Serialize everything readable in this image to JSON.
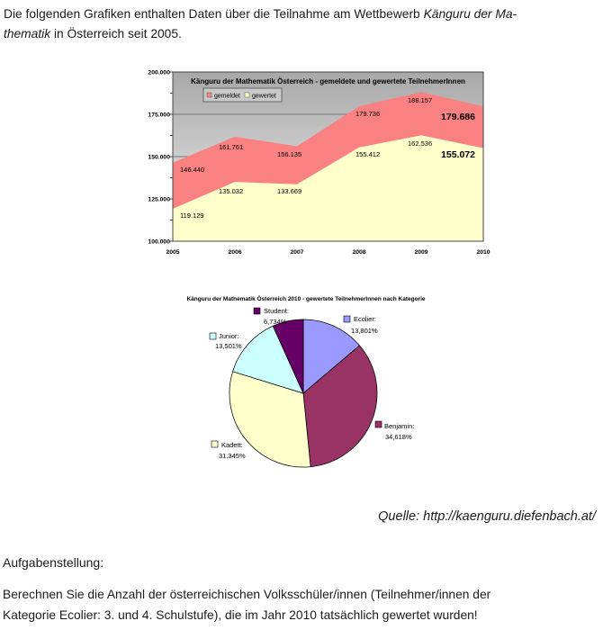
{
  "page": {
    "intro": {
      "line1_normal": "Die folgenden Grafiken enthalten Daten über die Teilnahme am Wettbewerb ",
      "line1_italic": "Känguru der Ma-",
      "line2_italic": "thematik",
      "line2_normal": " in Österreich seit 2005."
    },
    "source_line": "Quelle: http://kaenguru.diefenbach.at/",
    "task_heading": "Aufgabenstellung:",
    "task_line1": "Berechnen Sie die Anzahl der österreichischen Volksschüler/innen (Teilnehmer/innen der",
    "task_line2": "Kategorie Ecolier: 3. und 4. Schulstufe), die im Jahr 2010 tatsächlich gewertet wurden!"
  },
  "chart_data": [
    {
      "type": "area",
      "title": "Känguru der Mathematik Österreich - gemeldete und gewertete TeilnehmerInnen",
      "categories": [
        "2005",
        "2006",
        "2007",
        "2008",
        "2009",
        "2010"
      ],
      "series": [
        {
          "name": "gemeldet",
          "color": "#FA8181",
          "values": [
            146440,
            161761,
            156135,
            179736,
            188157,
            179686
          ],
          "point_labels": [
            "146.440",
            "161.761",
            "156.135",
            "179.736",
            "188.157",
            "179.686"
          ]
        },
        {
          "name": "gewertet",
          "color": "#FFFFCC",
          "values": [
            119129,
            135032,
            133669,
            155412,
            162536,
            155072
          ],
          "point_labels": [
            "119.129",
            "135.032",
            "133.669",
            "155.412",
            "162.536",
            "155.072"
          ]
        }
      ],
      "ylim": [
        100000,
        200000
      ],
      "yticks": [
        {
          "value": 100000,
          "label": "100.000"
        },
        {
          "value": 125000,
          "label": "125.000"
        },
        {
          "value": 150000,
          "label": "150.000"
        },
        {
          "value": 175000,
          "label": "175.000"
        },
        {
          "value": 200000,
          "label": "200.000"
        }
      ],
      "minor_tick_interval": 12500,
      "grid": "horizontal",
      "legend_position": "inside-top-left",
      "plot_background_gradient": [
        "#A8A8A8",
        "#F0F0F0"
      ],
      "last_point_emphasis": true
    },
    {
      "type": "pie",
      "title": "Känguru der Mathematik Österreich 2010 - gewertete TeilnehmerInnen nach Kategorie",
      "start_angle": "12-oclock",
      "direction": "clockwise",
      "slices": [
        {
          "name": "Ecolier",
          "label": "Ecolier:",
          "pct_label": "13,801%",
          "value_pct": 13.801,
          "color": "#9999FF"
        },
        {
          "name": "Benjamin",
          "label": "Benjamin:",
          "pct_label": "34,618%",
          "value_pct": 34.618,
          "color": "#993366"
        },
        {
          "name": "Kadett",
          "label": "Kadett:",
          "pct_label": "31,345%",
          "value_pct": 31.345,
          "color": "#FFFFCC"
        },
        {
          "name": "Junior",
          "label": "Junior:",
          "pct_label": "13,501%",
          "value_pct": 13.501,
          "color": "#CCFFFF"
        },
        {
          "name": "Student",
          "label": "Student:",
          "pct_label": "6,734%",
          "value_pct": 6.734,
          "color": "#660066"
        }
      ]
    }
  ]
}
